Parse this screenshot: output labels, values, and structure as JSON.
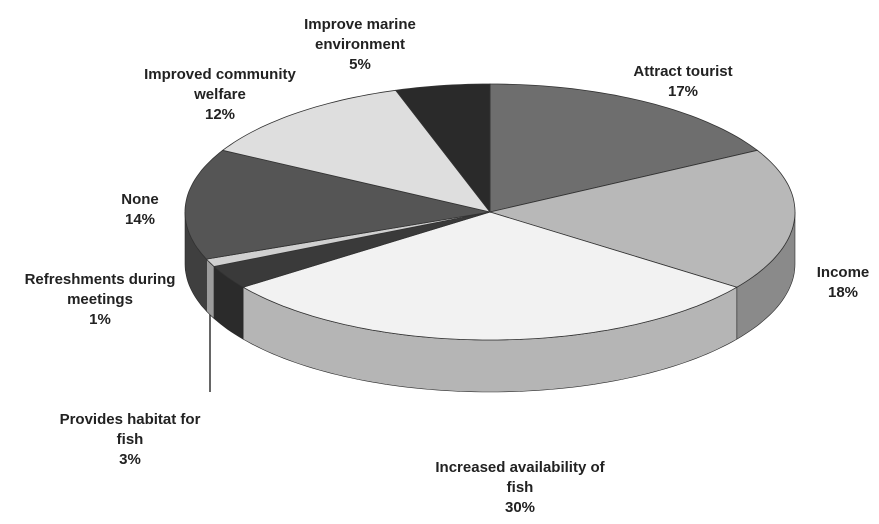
{
  "chart_data": {
    "type": "pie",
    "categories": [
      "Attract tourist",
      "Income",
      "Increased availability of fish",
      "Provides habitat for fish",
      "Refreshments during meetings",
      "None",
      "Improved community welfare",
      "Improve marine environment"
    ],
    "values": [
      17,
      18,
      30,
      3,
      1,
      14,
      12,
      5
    ],
    "value_labels": [
      "17%",
      "18%",
      "30%",
      "3%",
      "1%",
      "14%",
      "12%",
      "5%"
    ],
    "colors": [
      "#6e6e6e",
      "#b8b8b8",
      "#f2f2f2",
      "#3a3a3a",
      "#d0d0d0",
      "#555555",
      "#dedede",
      "#2a2a2a"
    ]
  }
}
